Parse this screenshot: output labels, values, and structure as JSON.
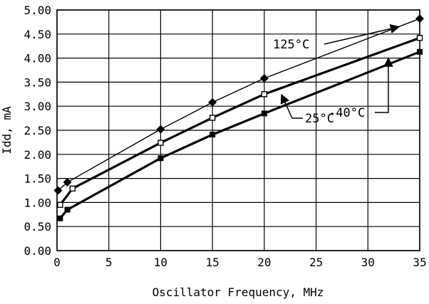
{
  "chart_data": {
    "type": "line",
    "xlabel": "Oscillator Frequency, MHz",
    "ylabel": "Idd, mA",
    "xlim": [
      0,
      35
    ],
    "ylim": [
      0,
      5
    ],
    "x_ticks": [
      0,
      5,
      10,
      15,
      20,
      25,
      30,
      35
    ],
    "y_ticks": [
      0,
      0.5,
      1.0,
      1.5,
      2.0,
      2.5,
      3.0,
      3.5,
      4.0,
      4.5,
      5.0
    ],
    "x_tick_labels": [
      "0",
      "5",
      "10",
      "15",
      "20",
      "25",
      "30",
      "35"
    ],
    "y_tick_labels": [
      "0.00",
      "0.50",
      "1.00",
      "1.50",
      "2.00",
      "2.50",
      "3.00",
      "3.50",
      "4.00",
      "4.50",
      "5.00"
    ],
    "grid": true,
    "series": [
      {
        "name": "125°C",
        "marker": "diamond-filled",
        "line_weight": "thin",
        "x": [
          0.1,
          1,
          10,
          15,
          20,
          35
        ],
        "y": [
          1.25,
          1.42,
          2.52,
          3.08,
          3.58,
          4.82
        ]
      },
      {
        "name": "25°C",
        "marker": "square-open",
        "line_weight": "thick",
        "x": [
          0.3,
          1.5,
          10,
          15,
          20,
          35
        ],
        "y": [
          0.95,
          1.29,
          2.24,
          2.76,
          3.25,
          4.42
        ]
      },
      {
        "name": "-40°C",
        "marker": "square-filled",
        "line_weight": "thick",
        "x": [
          0.3,
          1,
          10,
          15,
          20,
          35
        ],
        "y": [
          0.67,
          0.85,
          1.92,
          2.41,
          2.85,
          4.13
        ]
      }
    ],
    "annotations": [
      {
        "text": "125°C",
        "series": "125°C",
        "arrow_to": [
          33,
          4.65
        ]
      },
      {
        "text": "-40°C",
        "series": "-40°C",
        "arrow_to": [
          32,
          4.0
        ]
      },
      {
        "text": "25°C",
        "series": "25°C",
        "arrow_to": [
          21.5,
          3.3
        ]
      }
    ],
    "colors": {
      "line": "#000000",
      "grid": "#000000",
      "background": "#ffffff"
    }
  }
}
